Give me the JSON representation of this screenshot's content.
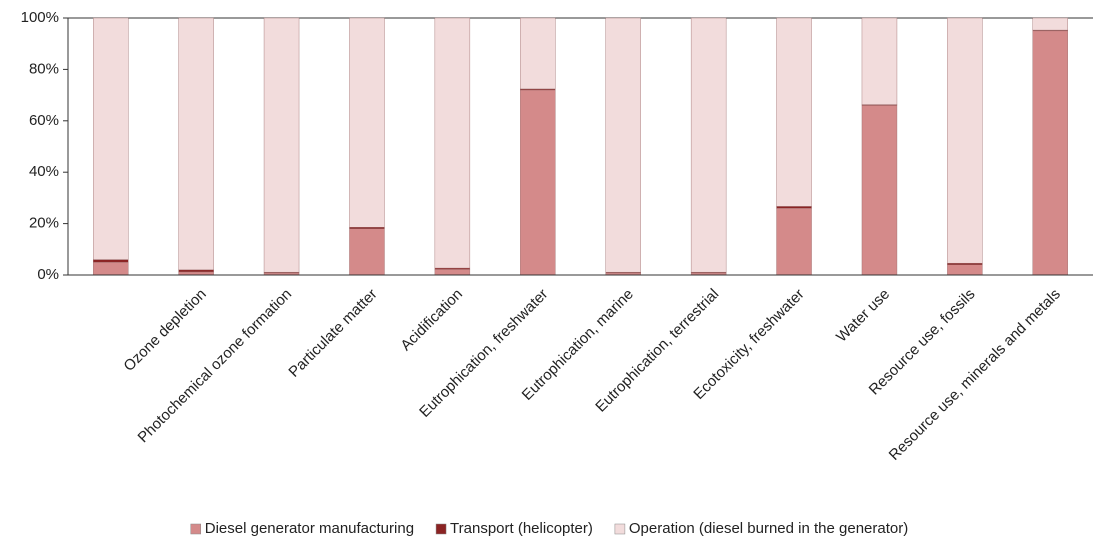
{
  "chart_data": {
    "type": "stacked-bar",
    "categories": [
      null,
      "Ozone depletion",
      "Photochemical ozone formation",
      "Particulate matter",
      "Acidification",
      "Eutrophication, freshwater",
      "Eutrophication, marine",
      "Eutrophication, terrestrial",
      "Ecotoxicity, freshwater",
      "Water use",
      "Resource use, fossils",
      "Resource use, minerals and metals"
    ],
    "series": [
      {
        "name": "Diesel generator manufacturing",
        "color": "#d48a8a",
        "values": [
          5,
          1.2,
          0.8,
          18,
          2.2,
          72,
          0.8,
          0.8,
          26,
          66,
          4,
          95
        ]
      },
      {
        "name": "Transport (helicopter)",
        "color": "#8b2323",
        "values": [
          1,
          0.8,
          0.3,
          0.6,
          0.5,
          0.4,
          0.3,
          0.3,
          0.7,
          0.3,
          0.6,
          0.3
        ]
      },
      {
        "name": "Operation (diesel burned in the generator)",
        "color": "#f2dcdc",
        "values": [
          94,
          98,
          98.9,
          81.4,
          97.3,
          27.6,
          98.9,
          98.9,
          73.3,
          33.7,
          95.4,
          4.7
        ]
      }
    ],
    "ylim": [
      0,
      100
    ],
    "yticks": [
      {
        "value": 0,
        "label": "0%"
      },
      {
        "value": 20,
        "label": "20%"
      },
      {
        "value": 40,
        "label": "40%"
      },
      {
        "value": 60,
        "label": "60%"
      },
      {
        "value": 80,
        "label": "80%"
      },
      {
        "value": 100,
        "label": "100%"
      }
    ],
    "legend": "bottom"
  }
}
